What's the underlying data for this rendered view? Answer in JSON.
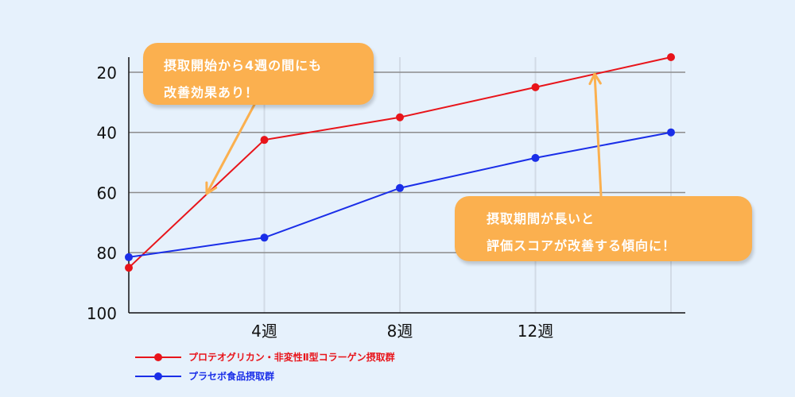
{
  "chart_data": {
    "type": "line",
    "x": [
      0,
      4,
      8,
      12,
      16
    ],
    "x_tick_labels": [
      {
        "x": 4,
        "label": "4週"
      },
      {
        "x": 8,
        "label": "8週"
      },
      {
        "x": 12,
        "label": "12週"
      }
    ],
    "y_tick_values": [
      20,
      40,
      60,
      80,
      100
    ],
    "y_tick_labels": [
      "20",
      "40",
      "60",
      "80",
      "100"
    ],
    "ylim": [
      100,
      15
    ],
    "y_inverted": true,
    "grid": "horizontal and vertical",
    "legend_placement": "bottom-left",
    "series": [
      {
        "name": "プロテオグリカン・非変性Ⅱ型コラーゲン摂取群",
        "color": "#e8141a",
        "values": [
          85,
          42.5,
          35,
          25,
          15
        ]
      },
      {
        "name": "プラセボ食品摂取群",
        "color": "#1a2ee8",
        "values": [
          81.5,
          75,
          58.5,
          48.5,
          40
        ]
      }
    ],
    "annotations": [
      {
        "lines": [
          "摂取開始から4週の間にも",
          "改善効果あり！"
        ]
      },
      {
        "lines": [
          "摂取期間が長いと",
          "評価スコアが改善する傾向に！"
        ]
      }
    ]
  },
  "colors": {
    "background": "#e6f1fc",
    "callout": "#fbb04f",
    "arrow": "#fbb04f",
    "grid": "#8c8c8c"
  }
}
